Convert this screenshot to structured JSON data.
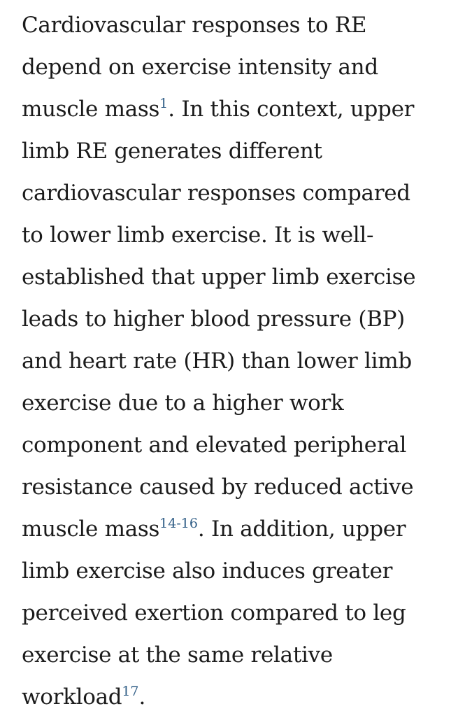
{
  "paragraph": {
    "l1": "Cardiovascular responses to RE",
    "l2": "depend on exercise intensity and",
    "l3_before": "muscle mass",
    "l3_ref": "1",
    "l3_after": ". In this context, upper",
    "l4": "limb RE generates different",
    "l5": "cardiovascular responses compared",
    "l6": "to lower limb exercise. It is well-",
    "l7": "established that upper limb exercise",
    "l8": "leads to higher blood pressure (BP)",
    "l9": "and heart rate (HR) than lower limb",
    "l10": "exercise due to a higher work",
    "l11": "component and elevated peripheral",
    "l12": "resistance caused by reduced active",
    "l13_before": "muscle mass",
    "l13_ref": "14-16",
    "l13_after": ". In addition, upper",
    "l14": "limb exercise also induces greater",
    "l15": "perceived exertion compared to leg",
    "l16": "exercise at the same relative",
    "l17_before": "workload",
    "l17_ref": "17",
    "l17_after": "."
  },
  "colors": {
    "text": "#1b1b1b",
    "citation_link": "#2f5d86",
    "background": "#ffffff"
  }
}
